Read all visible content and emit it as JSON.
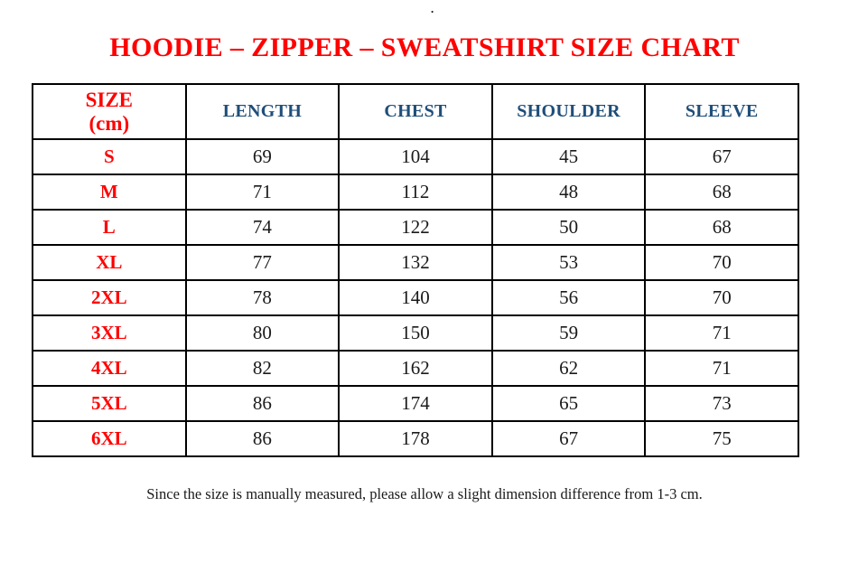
{
  "page": {
    "stray_dot": ".",
    "title": "HOODIE – ZIPPER – SWEATSHIRT SIZE CHART",
    "footnote": "Since the size is manually measured, please allow a slight dimension difference from 1-3 cm."
  },
  "colors": {
    "title_red": "#FF0000",
    "size_label_red": "#FF0000",
    "header_navy": "#1F4E79",
    "body_text_black": "#1A1A1A",
    "border_black": "#000000",
    "background_white": "#FFFFFF"
  },
  "table": {
    "size_header": {
      "line1": "SIZE",
      "line2": "(cm)"
    },
    "columns": [
      "LENGTH",
      "CHEST",
      "SHOULDER",
      "SLEEVE"
    ],
    "rows": [
      {
        "size": "S",
        "values": [
          "69",
          "104",
          "45",
          "67"
        ]
      },
      {
        "size": "M",
        "values": [
          "71",
          "112",
          "48",
          "68"
        ]
      },
      {
        "size": "L",
        "values": [
          "74",
          "122",
          "50",
          "68"
        ]
      },
      {
        "size": "XL",
        "values": [
          "77",
          "132",
          "53",
          "70"
        ]
      },
      {
        "size": "2XL",
        "values": [
          "78",
          "140",
          "56",
          "70"
        ]
      },
      {
        "size": "3XL",
        "values": [
          "80",
          "150",
          "59",
          "71"
        ]
      },
      {
        "size": "4XL",
        "values": [
          "82",
          "162",
          "62",
          "71"
        ]
      },
      {
        "size": "5XL",
        "values": [
          "86",
          "174",
          "65",
          "73"
        ]
      },
      {
        "size": "6XL",
        "values": [
          "86",
          "178",
          "67",
          "75"
        ]
      }
    ]
  }
}
